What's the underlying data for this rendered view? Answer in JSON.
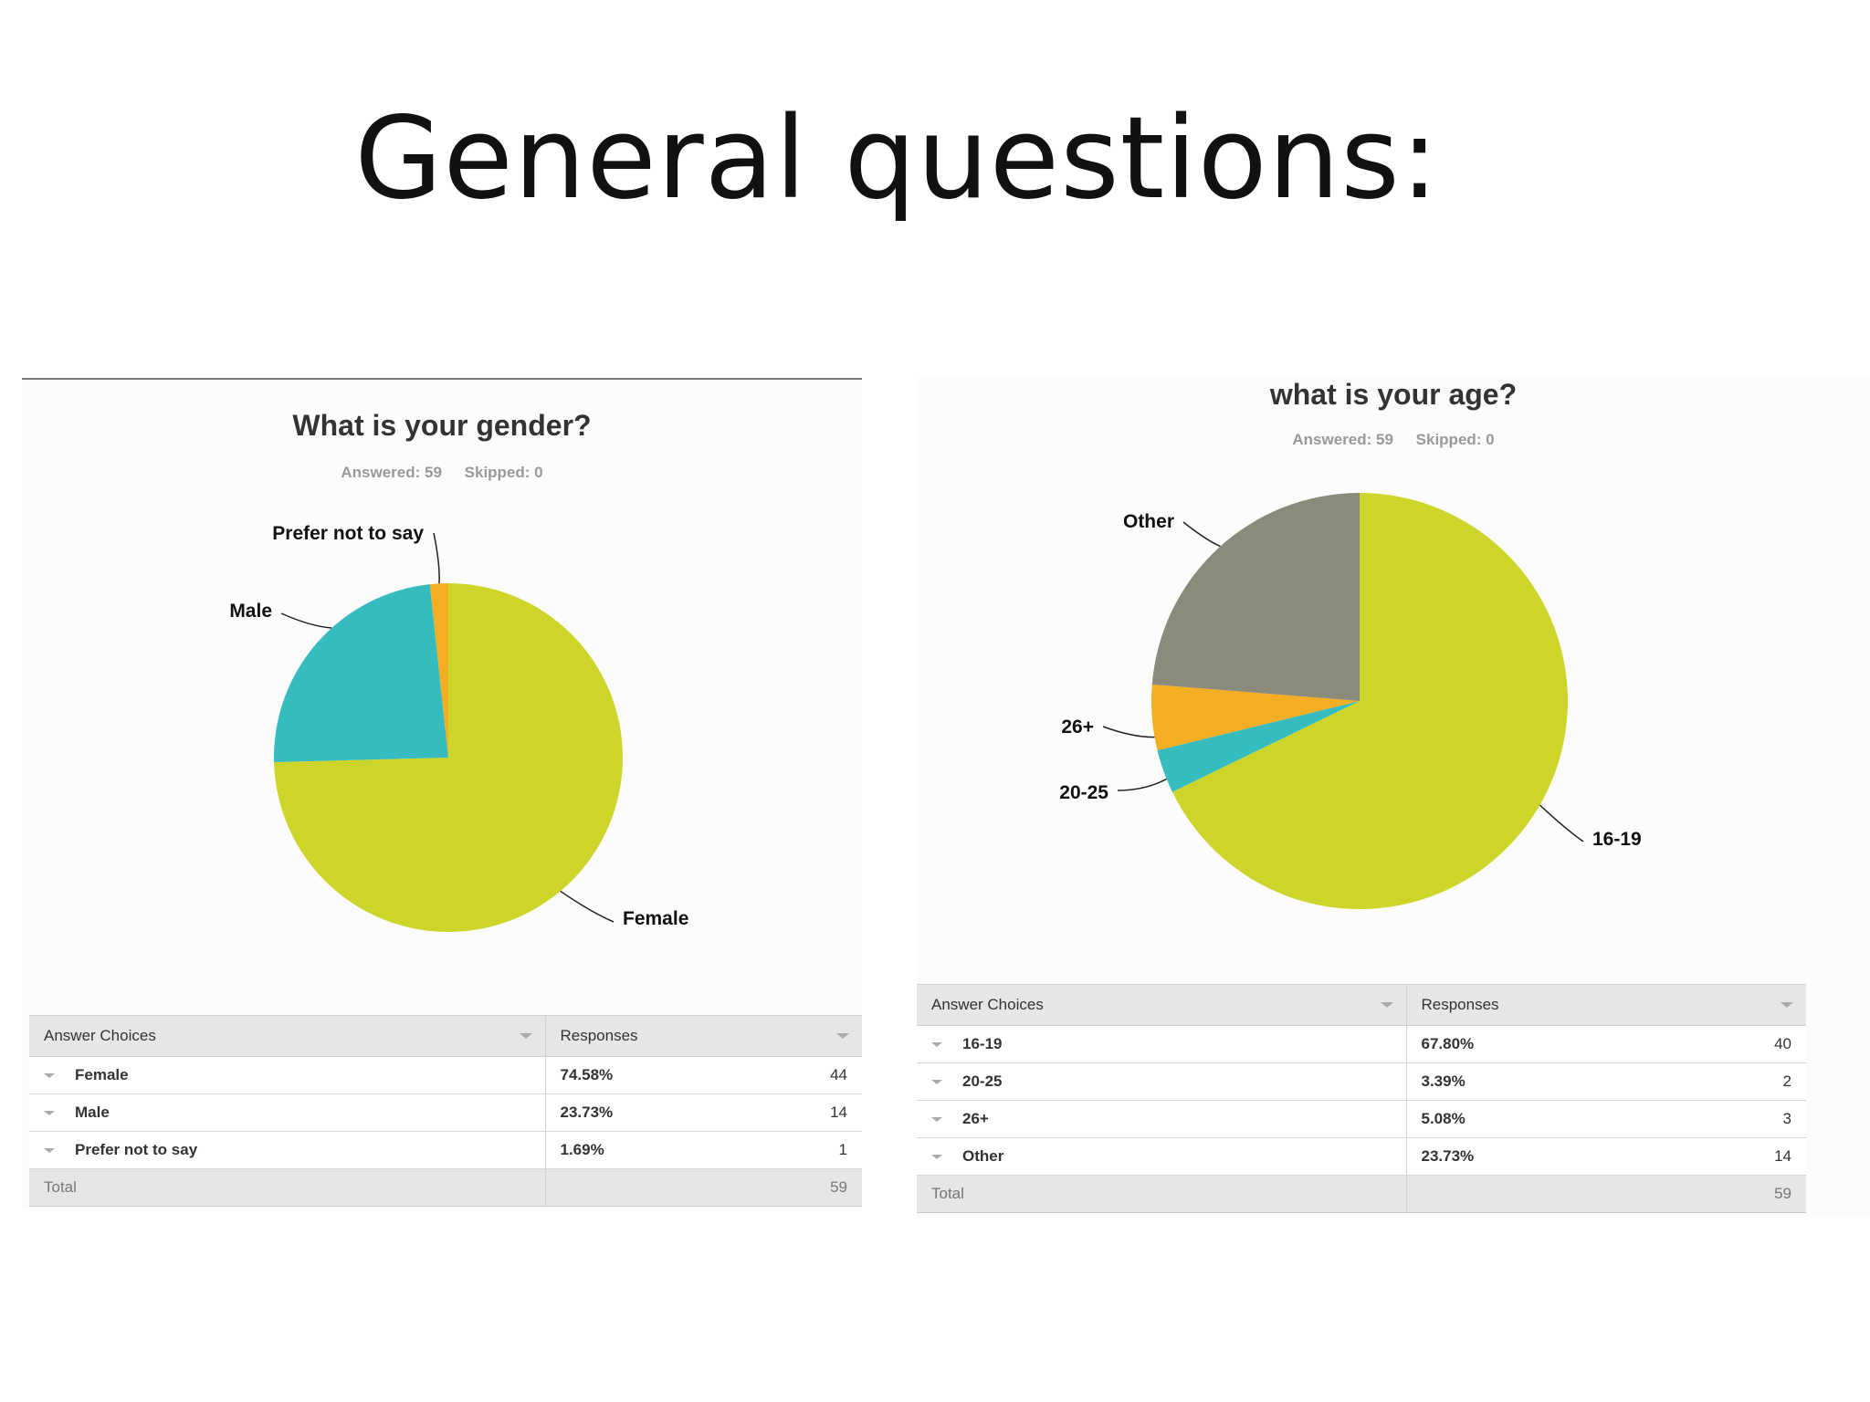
{
  "slide": {
    "title": "General questions:"
  },
  "chart_data": [
    {
      "type": "pie",
      "title": "What is your gender?",
      "answered_label": "Answered: 59",
      "skipped_label": "Skipped: 0",
      "categories": [
        "Female",
        "Male",
        "Prefer not to say"
      ],
      "values": [
        74.58,
        23.73,
        1.69
      ],
      "counts": [
        44,
        14,
        1
      ],
      "colors": [
        "#cdd52a",
        "#36bcbf",
        "#f5ae23"
      ],
      "table": {
        "header_choices": "Answer Choices",
        "header_responses": "Responses",
        "rows": [
          {
            "choice": "Female",
            "percent": "74.58%",
            "count": "44"
          },
          {
            "choice": "Male",
            "percent": "23.73%",
            "count": "14"
          },
          {
            "choice": "Prefer not to say",
            "percent": "1.69%",
            "count": "1"
          }
        ],
        "total_label": "Total",
        "total_count": "59"
      }
    },
    {
      "type": "pie",
      "title": "what is your age?",
      "answered_label": "Answered: 59",
      "skipped_label": "Skipped: 0",
      "categories": [
        "16-19",
        "20-25",
        "26+",
        "Other"
      ],
      "values": [
        67.8,
        3.39,
        5.08,
        23.73
      ],
      "counts": [
        40,
        2,
        3,
        14
      ],
      "colors": [
        "#cdd52a",
        "#36bcbf",
        "#f5ae23",
        "#8b8b7c"
      ],
      "table": {
        "header_choices": "Answer Choices",
        "header_responses": "Responses",
        "rows": [
          {
            "choice": "16-19",
            "percent": "67.80%",
            "count": "40"
          },
          {
            "choice": "20-25",
            "percent": "3.39%",
            "count": "2"
          },
          {
            "choice": "26+",
            "percent": "5.08%",
            "count": "3"
          },
          {
            "choice": "Other",
            "percent": "23.73%",
            "count": "14"
          }
        ],
        "total_label": "Total",
        "total_count": "59"
      }
    }
  ]
}
